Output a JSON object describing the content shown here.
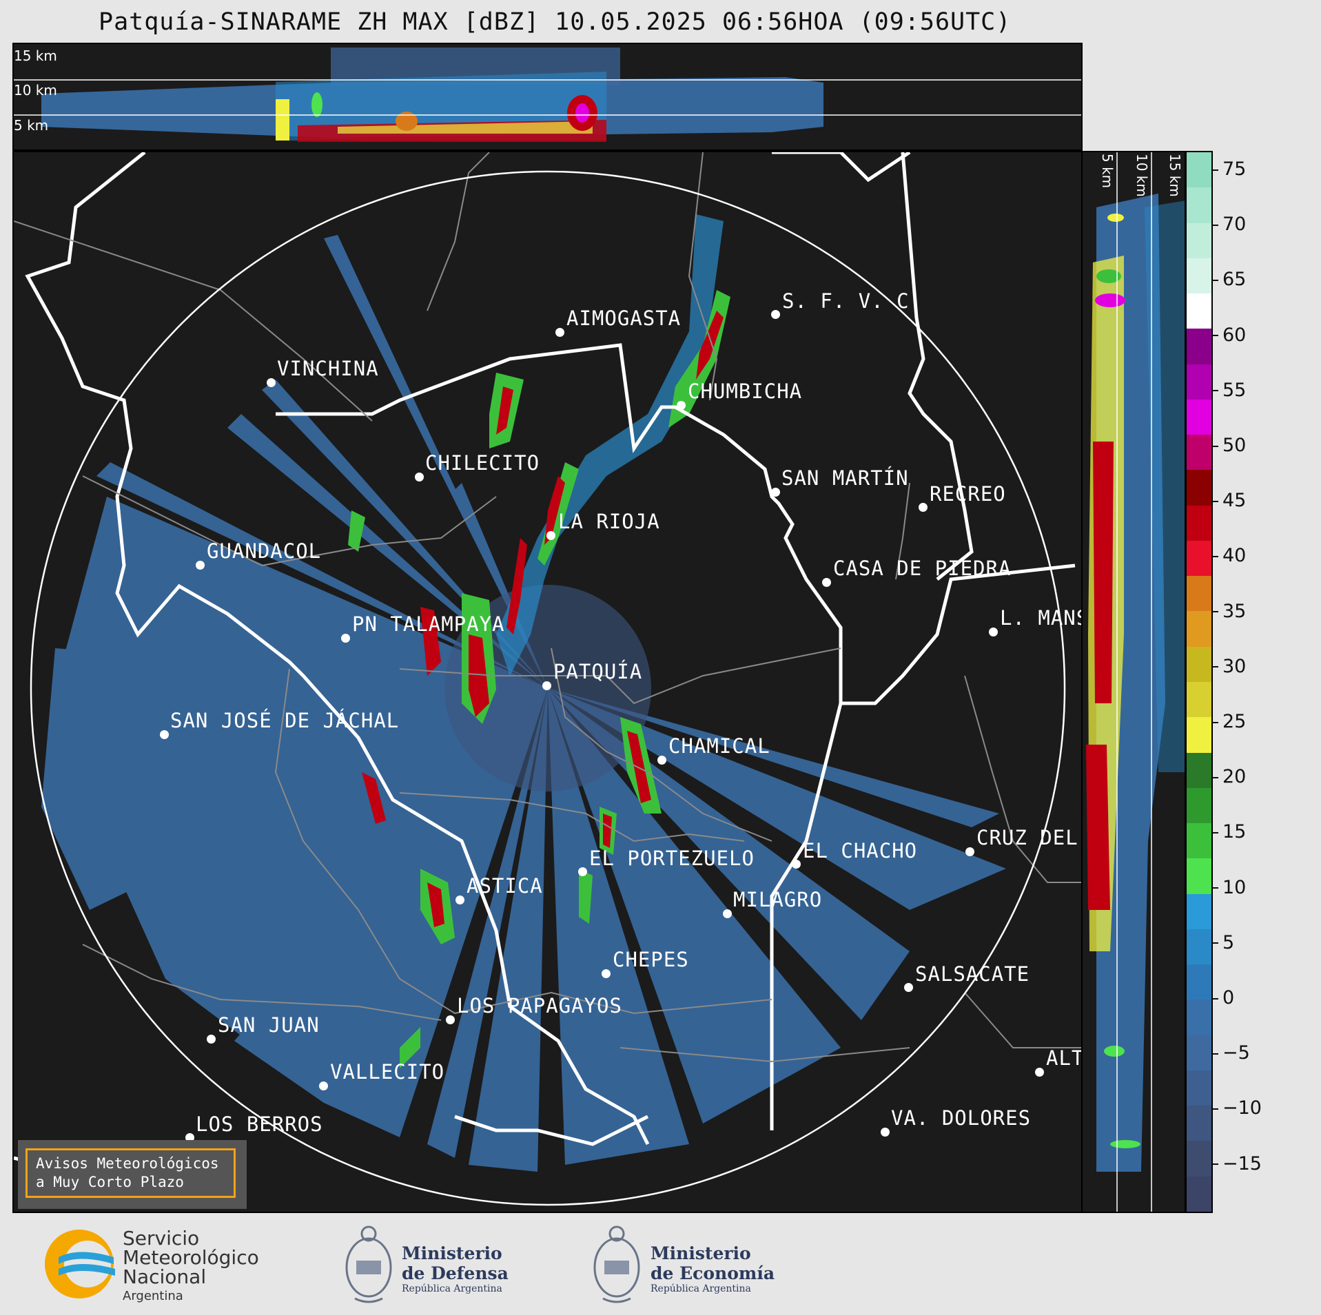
{
  "title": "Patquía-SINARAME ZH MAX [dBZ] 10.05.2025 06:56HOA (09:56UTC)",
  "top_panel": {
    "altitude_labels": [
      "15 km",
      "10 km",
      "5 km"
    ]
  },
  "side_panel": {
    "altitude_labels": [
      "5 km",
      "10 km",
      "15 km"
    ]
  },
  "map": {
    "radar_site": "PATQUÍA",
    "cities": [
      {
        "name": "AIMOGASTA"
      },
      {
        "name": "S. F. V. C."
      },
      {
        "name": "VINCHINA"
      },
      {
        "name": "CHUMBICHA"
      },
      {
        "name": "CHILECITO"
      },
      {
        "name": "SAN MARTÍN"
      },
      {
        "name": "RECREO"
      },
      {
        "name": "LA RIOJA"
      },
      {
        "name": "GUANDACOL"
      },
      {
        "name": "CASA DE PIEDRA"
      },
      {
        "name": "L. MANS"
      },
      {
        "name": "PN TALAMPAYA"
      },
      {
        "name": "PATQUÍA"
      },
      {
        "name": "SAN JOSÉ DE JÁCHAL"
      },
      {
        "name": "CHAMICAL"
      },
      {
        "name": "EL CHACHO"
      },
      {
        "name": "CRUZ DEL"
      },
      {
        "name": "EL PORTEZUELO"
      },
      {
        "name": "ASTICA"
      },
      {
        "name": "MILAGRO"
      },
      {
        "name": "CHEPES"
      },
      {
        "name": "SALSACATE"
      },
      {
        "name": "LOS PAPAGAYOS"
      },
      {
        "name": "SAN JUAN"
      },
      {
        "name": "ALT"
      },
      {
        "name": "VALLECITO"
      },
      {
        "name": "LOS BERROS"
      },
      {
        "name": "VA. DOLORES"
      }
    ]
  },
  "colorbar": {
    "unit": "dBZ",
    "ticks": [
      "75",
      "70",
      "65",
      "60",
      "55",
      "50",
      "45",
      "40",
      "35",
      "30",
      "25",
      "20",
      "15",
      "10",
      "5",
      "0",
      "−5",
      "−10",
      "−15"
    ],
    "colors": [
      "#8fdcc0",
      "#a8e6cf",
      "#c0eedb",
      "#d8f4e8",
      "#ffffff",
      "#8b008b",
      "#b000b0",
      "#e000e0",
      "#c0006a",
      "#8b0000",
      "#c00010",
      "#e8102a",
      "#d87a1a",
      "#e09a20",
      "#c8b820",
      "#d8d030",
      "#f0f040",
      "#2a7a2a",
      "#2e9a2e",
      "#3cc03c",
      "#4ee24e",
      "#2a9ad8",
      "#2a8ac8",
      "#2e7ab8",
      "#3a70aa",
      "#3e6aa0",
      "#3e6090",
      "#3e5680",
      "#3e4c70",
      "#3c4468"
    ]
  },
  "notice": {
    "line1": "Avisos Meteorológicos",
    "line2": "a Muy Corto Plazo"
  },
  "logos": {
    "smn": {
      "line1": "Servicio",
      "line2": "Meteorológico",
      "line3": "Nacional",
      "line4": "Argentina"
    },
    "defensa": {
      "line1": "Ministerio",
      "line2": "de Defensa",
      "line3": "República Argentina"
    },
    "economia": {
      "line1": "Ministerio",
      "line2": "de Economía",
      "line3": "República Argentina"
    }
  }
}
